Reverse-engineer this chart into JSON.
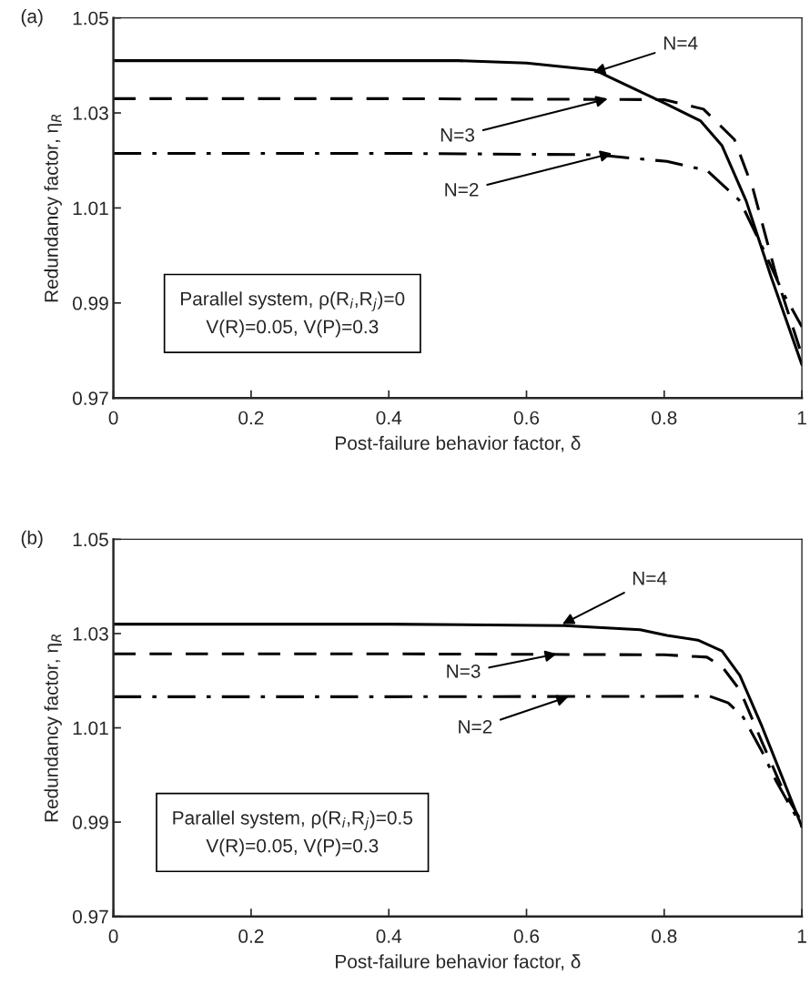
{
  "chart_data": [
    {
      "type": "line",
      "title": "(a)",
      "xlabel": "Post-failure behavior factor, δ",
      "ylabel": "Redundancy factor, η$_{R}$",
      "xlim": [
        0,
        1
      ],
      "ylim": [
        0.97,
        1.05
      ],
      "xticks": [
        0,
        0.2,
        0.4,
        0.6,
        0.8,
        1
      ],
      "yticks": [
        0.97,
        0.99,
        1.01,
        1.03,
        1.05
      ],
      "grid": false,
      "legend": false,
      "series": [
        {
          "color": "#000000",
          "line_style": "solid",
          "x": [
            0,
            0.2,
            0.4,
            0.5,
            0.6,
            0.7,
            0.721,
            0.8,
            0.853,
            0.884,
            0.919,
            0.955,
            1
          ],
          "values": [
            1.041,
            1.041,
            1.041,
            1.041,
            1.0405,
            1.039,
            1.0375,
            1.0321,
            1.0283,
            1.0231,
            1.0115,
            0.9956,
            0.977
          ]
        },
        {
          "color": "#000000",
          "line_style": "dashed",
          "x": [
            0,
            0.4,
            0.8,
            0.857,
            0.902,
            0.929,
            0.963,
            1
          ],
          "values": [
            1.033,
            1.033,
            1.0328,
            1.0308,
            1.0244,
            1.014,
            0.9956,
            0.979
          ]
        },
        {
          "color": "#000000",
          "line_style": "dashdot",
          "x": [
            0,
            0.4,
            0.7,
            0.804,
            0.862,
            0.91,
            0.942,
            0.972,
            1
          ],
          "values": [
            1.0215,
            1.0215,
            1.0212,
            1.0198,
            1.0179,
            1.0115,
            1.0019,
            0.9923,
            0.985
          ]
        }
      ],
      "annotations": [
        {
          "text": "N=4",
          "x": 0.697,
          "y": 1.0385
        },
        {
          "text": "N=3",
          "x": 0.718,
          "y": 1.033
        },
        {
          "text": "N=2",
          "x": 0.724,
          "y": 1.0215
        },
        "Parallel system, ρ(R$_{i}$,R$_{j}$)=0\nV(R)=0.05, V(P)=0.3"
      ]
    },
    {
      "type": "line",
      "title": "(b)",
      "xlabel": "Post-failure behavior factor, δ",
      "ylabel": "Redundancy factor, η$_{R}$",
      "xlim": [
        0,
        1
      ],
      "ylim": [
        0.97,
        1.05
      ],
      "xticks": [
        0,
        0.2,
        0.4,
        0.6,
        0.8,
        1
      ],
      "yticks": [
        0.97,
        0.99,
        1.01,
        1.03,
        1.05
      ],
      "grid": false,
      "legend": false,
      "series": [
        {
          "color": "#000000",
          "line_style": "solid",
          "x": [
            0,
            0.4,
            0.655,
            0.765,
            0.804,
            0.849,
            0.884,
            0.91,
            0.942,
            0.972,
            1
          ],
          "values": [
            1.032,
            1.032,
            1.0317,
            1.0308,
            1.0296,
            1.0286,
            1.0263,
            1.0211,
            1.0103,
            0.9993,
            0.989
          ]
        },
        {
          "color": "#000000",
          "line_style": "dashed",
          "x": [
            0,
            0.4,
            0.8,
            0.862,
            0.884,
            0.91,
            0.942,
            0.972,
            1
          ],
          "values": [
            1.0257,
            1.0257,
            1.0255,
            1.025,
            1.023,
            1.018,
            1.007,
            0.997,
            0.99
          ]
        },
        {
          "color": "#000000",
          "line_style": "dashdot",
          "x": [
            0,
            0.4,
            0.866,
            0.893,
            0.915,
            0.942,
            0.963,
            1
          ],
          "values": [
            1.0166,
            1.0166,
            1.0167,
            1.0153,
            1.0122,
            1.005,
            0.9986,
            0.989
          ]
        }
      ],
      "annotations": [
        {
          "text": "N=4",
          "x": 0.652,
          "y": 1.032
        },
        {
          "text": "N=3",
          "x": 0.644,
          "y": 1.0257
        },
        {
          "text": "N=2",
          "x": 0.661,
          "y": 1.0166
        },
        "Parallel system, ρ(R$_{i}$,R$_{j}$)=0.5\nV(R)=0.05, V(P)=0.3"
      ]
    }
  ]
}
